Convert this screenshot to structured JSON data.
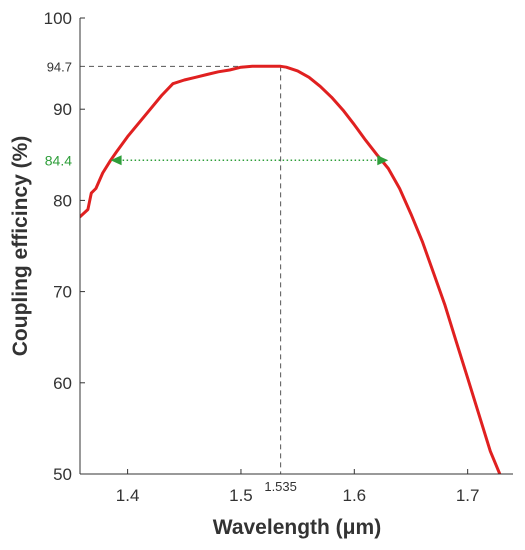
{
  "chart_data": {
    "type": "line",
    "xlabel": "Wavelength (μm)",
    "ylabel": "Coupling efficincy (%)",
    "xlim": [
      1.358,
      1.74
    ],
    "ylim": [
      50,
      100
    ],
    "x_ticks": [
      1.4,
      1.5,
      1.6,
      1.7
    ],
    "x_tick_labels": [
      "1.4",
      "1.5",
      "1.6",
      "1.7"
    ],
    "y_ticks": [
      50,
      60,
      70,
      80,
      90,
      100
    ],
    "y_tick_labels": [
      "50",
      "60",
      "70",
      "80",
      "90",
      "100"
    ],
    "grid": false,
    "series": [
      {
        "color": "#e02020",
        "x": [
          1.358,
          1.365,
          1.368,
          1.372,
          1.378,
          1.385,
          1.39,
          1.4,
          1.41,
          1.42,
          1.43,
          1.44,
          1.45,
          1.46,
          1.47,
          1.48,
          1.49,
          1.5,
          1.51,
          1.52,
          1.53,
          1.535,
          1.54,
          1.55,
          1.56,
          1.57,
          1.58,
          1.59,
          1.6,
          1.61,
          1.62,
          1.63,
          1.64,
          1.65,
          1.66,
          1.67,
          1.68,
          1.69,
          1.7,
          1.71,
          1.72,
          1.73
        ],
        "y": [
          78.2,
          79.0,
          80.8,
          81.3,
          83.0,
          84.4,
          85.3,
          87.0,
          88.5,
          90.0,
          91.5,
          92.8,
          93.2,
          93.5,
          93.8,
          94.1,
          94.3,
          94.6,
          94.7,
          94.7,
          94.7,
          94.7,
          94.6,
          94.2,
          93.5,
          92.5,
          91.3,
          89.9,
          88.3,
          86.6,
          85.0,
          83.5,
          81.3,
          78.5,
          75.5,
          72.0,
          68.5,
          64.5,
          60.5,
          56.5,
          52.5,
          49.5
        ]
      }
    ],
    "annotations": {
      "peak": {
        "x": 1.535,
        "y": 94.7,
        "x_label": "1.535",
        "y_label": "94.7"
      },
      "bandwidth": {
        "y": 84.4,
        "x_start": 1.385,
        "x_end": 1.63,
        "label": "84.4",
        "color": "#2e9e3a"
      }
    }
  }
}
